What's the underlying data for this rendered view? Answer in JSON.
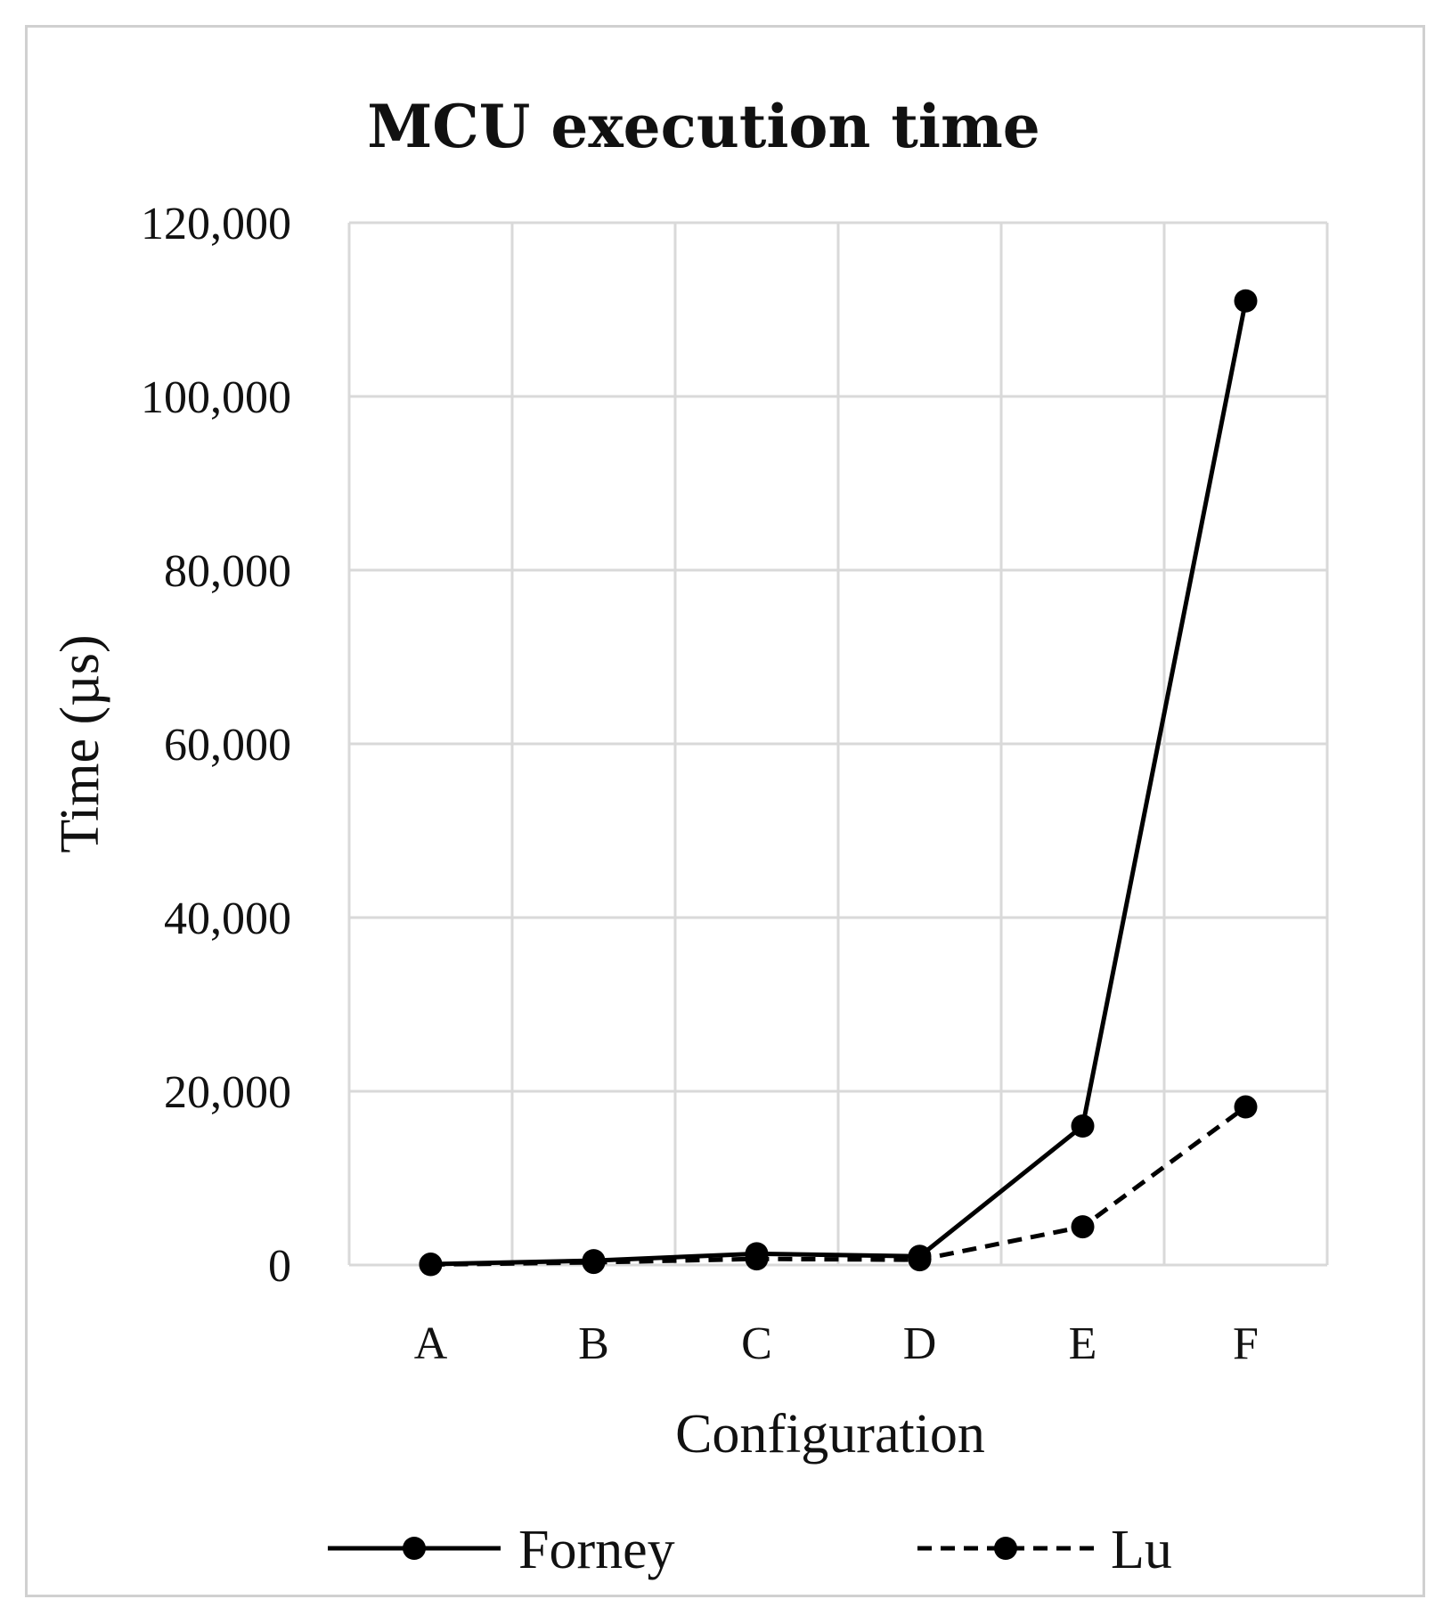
{
  "chart_data": {
    "type": "line",
    "title": "MCU execution time",
    "xlabel": "Configuration",
    "ylabel": "Time (µs)",
    "categories": [
      "A",
      "B",
      "C",
      "D",
      "E",
      "F"
    ],
    "ylim": [
      0,
      120000
    ],
    "yticks": [
      0,
      20000,
      40000,
      60000,
      80000,
      100000,
      120000
    ],
    "ytick_labels": [
      "0",
      "20,000",
      "40,000",
      "60,000",
      "80,000",
      "100,000",
      "120,000"
    ],
    "grid": true,
    "legend_position": "bottom",
    "series": [
      {
        "name": "Forney",
        "style": "solid",
        "values": [
          100,
          500,
          1300,
          1000,
          16000,
          111000
        ]
      },
      {
        "name": "Lu",
        "style": "dashed",
        "values": [
          50,
          300,
          700,
          600,
          4400,
          18200
        ]
      }
    ],
    "colors": {
      "line": "#000000",
      "grid": "#d9d9d9",
      "frame": "#d0d0d0"
    }
  }
}
